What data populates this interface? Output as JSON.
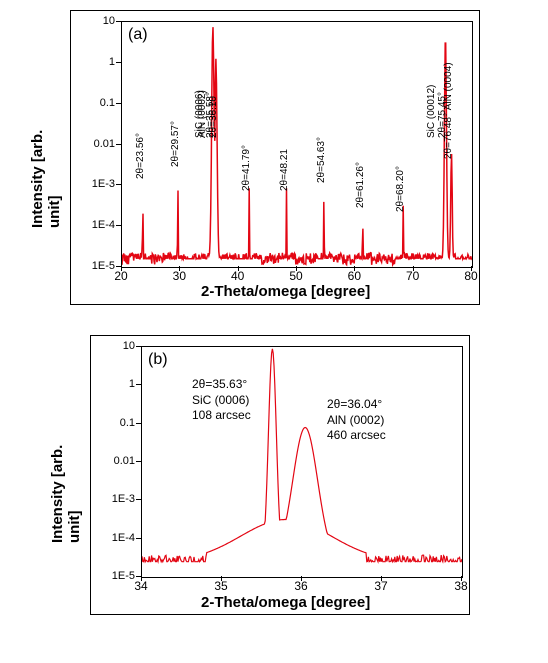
{
  "figure": {
    "background_color": "#ffffff",
    "line_color": "#e30613",
    "a": {
      "letter": "(a)",
      "x_label": "2-Theta/omega [degree]",
      "y_label": "Intensity [arb. unit]",
      "xlim": [
        20,
        80
      ],
      "xticks": [
        20,
        30,
        40,
        50,
        60,
        70,
        80
      ],
      "yticks": [
        "1E-5",
        "1E-4",
        "1E-3",
        "0.01",
        "0.1",
        "1",
        "10"
      ],
      "line_width": 1.5,
      "peaks": [
        {
          "x": 23.56,
          "logy": -2.7,
          "label": "2θ=23.56°"
        },
        {
          "x": 29.57,
          "logy": -2.4,
          "label": "2θ=29.57°"
        },
        {
          "x": 35.58,
          "logy": 0.9,
          "label": "2θ=35.58°",
          "label2": "SiC (0006)"
        },
        {
          "x": 36.1,
          "logy": 0.1,
          "label": "2θ=36.10",
          "label2": "AlN (0002)"
        },
        {
          "x": 41.79,
          "logy": -3.0,
          "label": "2θ=41.79°"
        },
        {
          "x": 48.21,
          "logy": -3.0,
          "label": "2θ=48.21"
        },
        {
          "x": 54.63,
          "logy": -2.8,
          "label": "2θ=54.63°"
        },
        {
          "x": 61.26,
          "logy": -3.4,
          "label": "2θ=61.26°"
        },
        {
          "x": 68.2,
          "logy": -3.5,
          "label": "2θ=68.20°"
        },
        {
          "x": 75.45,
          "logy": 0.7,
          "label": "2θ=75.45°",
          "label2": "SiC (00012)"
        },
        {
          "x": 76.48,
          "logy": -2.2,
          "label": "2θ=76.48° AlN (0004)"
        }
      ],
      "baseline_logy": -4.8
    },
    "b": {
      "letter": "(b)",
      "x_label": "2-Theta/omega [degree]",
      "y_label": "Intensity [arb. unit]",
      "xlim": [
        34,
        38
      ],
      "xticks": [
        34,
        35,
        36,
        37,
        38
      ],
      "yticks": [
        "1E-5",
        "1E-4",
        "1E-3",
        "0.01",
        "0.1",
        "1",
        "10"
      ],
      "line_width": 1.2,
      "anno1_lines": [
        "2θ=35.63°",
        "SiC (0006)",
        "108 arcsec"
      ],
      "anno2_lines": [
        "2θ=36.04°",
        "AlN (0002)",
        "460 arcsec"
      ],
      "peak1_x": 35.63,
      "peak1_logy": 0.95,
      "peak2_x": 36.04,
      "peak2_logy": -1.1,
      "baseline_logy": -4.6
    }
  }
}
